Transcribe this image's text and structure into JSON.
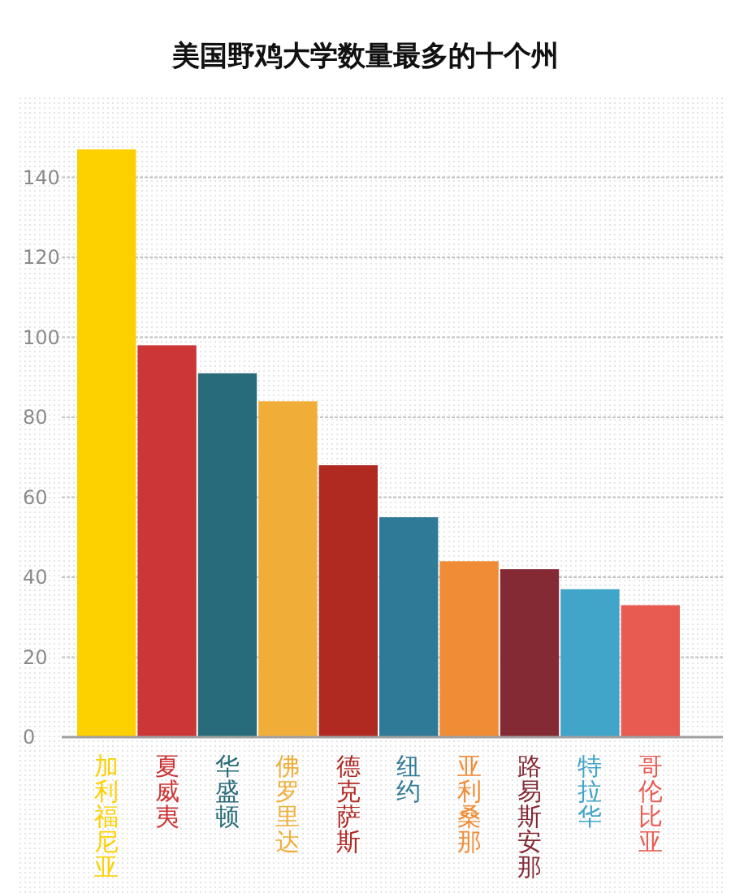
{
  "chart_data": {
    "type": "bar",
    "title": "美国野鸡大学数量最多的十个州",
    "categories": [
      "加利福尼亚",
      "夏威夷",
      "华盛顿",
      "佛罗里达",
      "德克萨斯",
      "纽约",
      "亚利桑那",
      "路易斯安那",
      "特拉华",
      "哥伦比亚"
    ],
    "values": [
      147,
      98,
      91,
      84,
      68,
      55,
      44,
      42,
      37,
      33
    ],
    "colors": [
      "#fdd000",
      "#cc3637",
      "#286b7a",
      "#f0ae38",
      "#b02a22",
      "#2f7a96",
      "#f18c36",
      "#842a35",
      "#40a5c8",
      "#e75b51"
    ],
    "ylim": [
      0,
      160
    ],
    "yticks": [
      0,
      20,
      40,
      60,
      80,
      100,
      120,
      140
    ],
    "grid": "y"
  }
}
